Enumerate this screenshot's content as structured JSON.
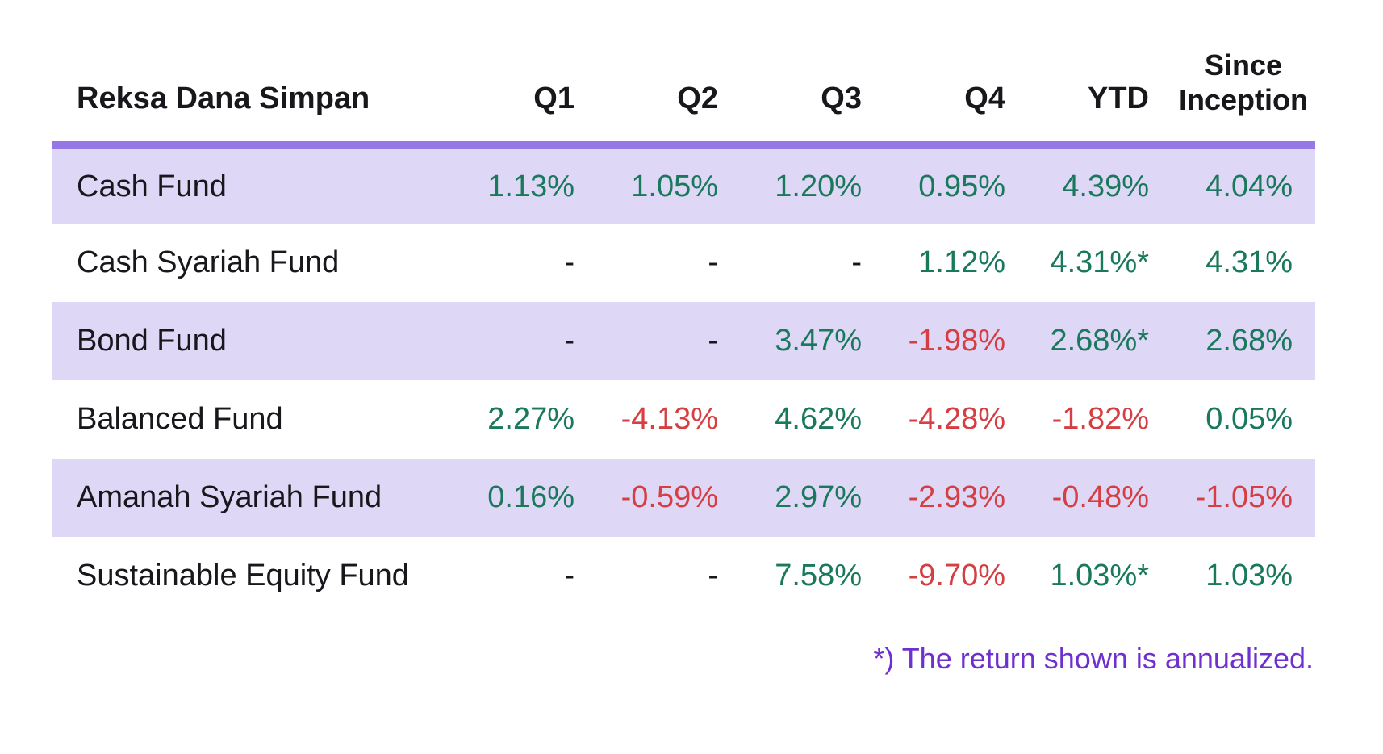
{
  "table": {
    "header": {
      "name_label": "Reksa Dana Simpan",
      "columns": [
        "Q1",
        "Q2",
        "Q3",
        "Q4",
        "YTD",
        "Since Inception"
      ]
    },
    "rows": [
      {
        "name": "Cash Fund",
        "shaded": true,
        "values": [
          {
            "text": "1.13%",
            "tone": "pos"
          },
          {
            "text": "1.05%",
            "tone": "pos"
          },
          {
            "text": "1.20%",
            "tone": "pos"
          },
          {
            "text": "0.95%",
            "tone": "pos"
          },
          {
            "text": "4.39%",
            "tone": "pos"
          },
          {
            "text": "4.04%",
            "tone": "pos"
          }
        ]
      },
      {
        "name": "Cash Syariah Fund",
        "shaded": false,
        "values": [
          {
            "text": "-",
            "tone": "dash"
          },
          {
            "text": "-",
            "tone": "dash"
          },
          {
            "text": "-",
            "tone": "dash"
          },
          {
            "text": "1.12%",
            "tone": "pos"
          },
          {
            "text": "4.31%*",
            "tone": "pos"
          },
          {
            "text": "4.31%",
            "tone": "pos"
          }
        ]
      },
      {
        "name": "Bond Fund",
        "shaded": true,
        "values": [
          {
            "text": "-",
            "tone": "dash"
          },
          {
            "text": "-",
            "tone": "dash"
          },
          {
            "text": "3.47%",
            "tone": "pos"
          },
          {
            "text": "-1.98%",
            "tone": "neg"
          },
          {
            "text": "2.68%*",
            "tone": "pos"
          },
          {
            "text": "2.68%",
            "tone": "pos"
          }
        ]
      },
      {
        "name": "Balanced Fund",
        "shaded": false,
        "values": [
          {
            "text": "2.27%",
            "tone": "pos"
          },
          {
            "text": "-4.13%",
            "tone": "neg"
          },
          {
            "text": "4.62%",
            "tone": "pos"
          },
          {
            "text": "-4.28%",
            "tone": "neg"
          },
          {
            "text": "-1.82%",
            "tone": "neg"
          },
          {
            "text": "0.05%",
            "tone": "pos"
          }
        ]
      },
      {
        "name": "Amanah Syariah Fund",
        "shaded": true,
        "values": [
          {
            "text": "0.16%",
            "tone": "pos"
          },
          {
            "text": "-0.59%",
            "tone": "neg"
          },
          {
            "text": "2.97%",
            "tone": "pos"
          },
          {
            "text": "-2.93%",
            "tone": "neg"
          },
          {
            "text": "-0.48%",
            "tone": "neg"
          },
          {
            "text": "-1.05%",
            "tone": "neg"
          }
        ]
      },
      {
        "name": "Sustainable Equity Fund",
        "shaded": false,
        "values": [
          {
            "text": "-",
            "tone": "dash"
          },
          {
            "text": "-",
            "tone": "dash"
          },
          {
            "text": "7.58%",
            "tone": "pos"
          },
          {
            "text": "-9.70%",
            "tone": "neg"
          },
          {
            "text": "1.03%*",
            "tone": "pos"
          },
          {
            "text": "1.03%",
            "tone": "pos"
          }
        ]
      }
    ],
    "footnote": "*) The return shown is annualized."
  },
  "colors": {
    "positive": "#1a785c",
    "negative": "#d53e42",
    "header_rule": "#9677e6",
    "row_shading": "#ded7f6",
    "footnote_text": "#6e30ce",
    "base_text": "#17171c"
  },
  "chart_data": {
    "type": "table",
    "title": "Reksa Dana Simpan",
    "columns": [
      "Q1",
      "Q2",
      "Q3",
      "Q4",
      "YTD",
      "Since Inception"
    ],
    "rows": [
      {
        "name": "Cash Fund",
        "Q1": 1.13,
        "Q2": 1.05,
        "Q3": 1.2,
        "Q4": 0.95,
        "YTD": 4.39,
        "Since Inception": 4.04,
        "ytd_annualized": false
      },
      {
        "name": "Cash Syariah Fund",
        "Q1": null,
        "Q2": null,
        "Q3": null,
        "Q4": 1.12,
        "YTD": 4.31,
        "Since Inception": 4.31,
        "ytd_annualized": true
      },
      {
        "name": "Bond Fund",
        "Q1": null,
        "Q2": null,
        "Q3": 3.47,
        "Q4": -1.98,
        "YTD": 2.68,
        "Since Inception": 2.68,
        "ytd_annualized": true
      },
      {
        "name": "Balanced Fund",
        "Q1": 2.27,
        "Q2": -4.13,
        "Q3": 4.62,
        "Q4": -4.28,
        "YTD": -1.82,
        "Since Inception": 0.05,
        "ytd_annualized": false
      },
      {
        "name": "Amanah Syariah Fund",
        "Q1": 0.16,
        "Q2": -0.59,
        "Q3": 2.97,
        "Q4": -2.93,
        "YTD": -0.48,
        "Since Inception": -1.05,
        "ytd_annualized": false
      },
      {
        "name": "Sustainable Equity Fund",
        "Q1": null,
        "Q2": null,
        "Q3": 7.58,
        "Q4": -9.7,
        "YTD": 1.03,
        "Since Inception": 1.03,
        "ytd_annualized": true
      }
    ],
    "unit": "percent",
    "footnote": "*) The return shown is annualized."
  }
}
